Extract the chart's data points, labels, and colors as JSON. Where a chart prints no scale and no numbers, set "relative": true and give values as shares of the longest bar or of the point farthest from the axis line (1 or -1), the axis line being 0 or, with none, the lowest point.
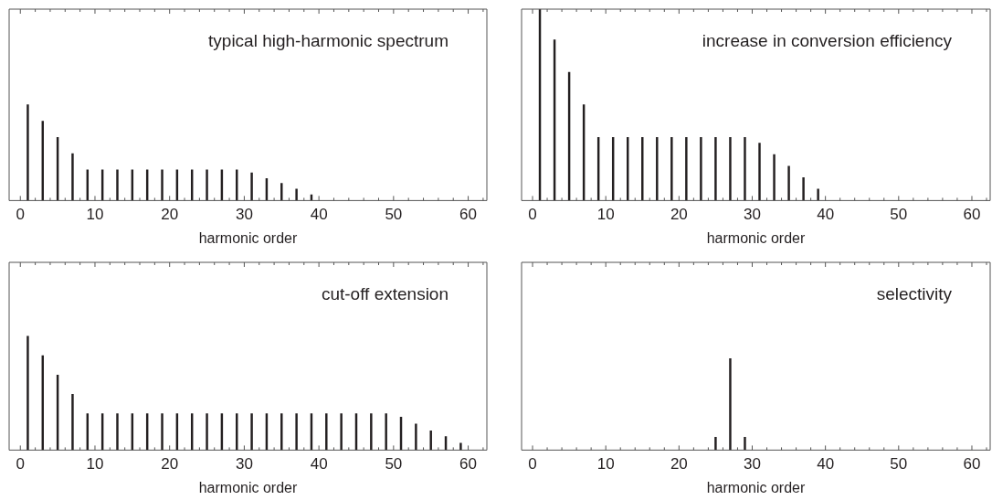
{
  "chart_data": [
    {
      "type": "bar",
      "title": "typical high-harmonic spectrum",
      "xlabel": "harmonic order",
      "relative": true,
      "xlim": [
        -1.5,
        62.5
      ],
      "xticks": [
        0,
        {
          "value": 2,
          "label": null
        },
        {
          "value": 4,
          "label": null
        },
        {
          "value": 6,
          "label": null
        },
        {
          "value": 8,
          "label": null
        },
        10,
        {
          "value": 12,
          "label": null
        },
        {
          "value": 14,
          "label": null
        },
        {
          "value": 16,
          "label": null
        },
        {
          "value": 18,
          "label": null
        },
        20,
        {
          "value": 22,
          "label": null
        },
        {
          "value": 24,
          "label": null
        },
        {
          "value": 26,
          "label": null
        },
        {
          "value": 28,
          "label": null
        },
        30,
        {
          "value": 32,
          "label": null
        },
        {
          "value": 34,
          "label": null
        },
        {
          "value": 36,
          "label": null
        },
        {
          "value": 38,
          "label": null
        },
        40,
        {
          "value": 42,
          "label": null
        },
        {
          "value": 44,
          "label": null
        },
        {
          "value": 46,
          "label": null
        },
        {
          "value": 48,
          "label": null
        },
        50,
        {
          "value": 52,
          "label": null
        },
        {
          "value": 54,
          "label": null
        },
        {
          "value": 56,
          "label": null
        },
        {
          "value": 58,
          "label": null
        },
        60,
        {
          "value": 62,
          "label": null
        }
      ],
      "series": [
        {
          "color": "#231f20",
          "x": [
            1,
            3,
            5,
            7,
            9,
            11,
            13,
            15,
            17,
            19,
            21,
            23,
            25,
            27,
            29,
            31,
            33,
            35,
            37,
            39
          ],
          "values": [
            1,
            0.83,
            0.66,
            0.49,
            0.32,
            0.32,
            0.32,
            0.32,
            0.32,
            0.32,
            0.32,
            0.32,
            0.32,
            0.32,
            0.32,
            0.29,
            0.23,
            0.18,
            0.12,
            0.06
          ]
        }
      ]
    },
    {
      "type": "bar",
      "title": "increase in conversion efficiency",
      "xlabel": "harmonic order",
      "relative": true,
      "xlim": [
        -1.5,
        62.5
      ],
      "xticks": [
        0,
        {
          "value": 2,
          "label": null
        },
        {
          "value": 4,
          "label": null
        },
        {
          "value": 6,
          "label": null
        },
        {
          "value": 8,
          "label": null
        },
        10,
        {
          "value": 12,
          "label": null
        },
        {
          "value": 14,
          "label": null
        },
        {
          "value": 16,
          "label": null
        },
        {
          "value": 18,
          "label": null
        },
        20,
        {
          "value": 22,
          "label": null
        },
        {
          "value": 24,
          "label": null
        },
        {
          "value": 26,
          "label": null
        },
        {
          "value": 28,
          "label": null
        },
        30,
        {
          "value": 32,
          "label": null
        },
        {
          "value": 34,
          "label": null
        },
        {
          "value": 36,
          "label": null
        },
        {
          "value": 38,
          "label": null
        },
        40,
        {
          "value": 42,
          "label": null
        },
        {
          "value": 44,
          "label": null
        },
        {
          "value": 46,
          "label": null
        },
        {
          "value": 48,
          "label": null
        },
        50,
        {
          "value": 52,
          "label": null
        },
        {
          "value": 54,
          "label": null
        },
        {
          "value": 56,
          "label": null
        },
        {
          "value": 58,
          "label": null
        },
        60,
        {
          "value": 62,
          "label": null
        }
      ],
      "series": [
        {
          "color": "#231f20",
          "x": [
            1,
            3,
            5,
            7,
            9,
            11,
            13,
            15,
            17,
            19,
            21,
            23,
            25,
            27,
            29,
            31,
            33,
            35,
            37,
            39
          ],
          "values": [
            1,
            0.84,
            0.67,
            0.5,
            0.33,
            0.33,
            0.33,
            0.33,
            0.33,
            0.33,
            0.33,
            0.33,
            0.33,
            0.33,
            0.33,
            0.3,
            0.24,
            0.18,
            0.12,
            0.06
          ]
        }
      ]
    },
    {
      "type": "bar",
      "title": "cut-off extension",
      "xlabel": "harmonic order",
      "relative": true,
      "xlim": [
        -1.5,
        62.5
      ],
      "xticks": [
        0,
        {
          "value": 2,
          "label": null
        },
        {
          "value": 4,
          "label": null
        },
        {
          "value": 6,
          "label": null
        },
        {
          "value": 8,
          "label": null
        },
        10,
        {
          "value": 12,
          "label": null
        },
        {
          "value": 14,
          "label": null
        },
        {
          "value": 16,
          "label": null
        },
        {
          "value": 18,
          "label": null
        },
        20,
        {
          "value": 22,
          "label": null
        },
        {
          "value": 24,
          "label": null
        },
        {
          "value": 26,
          "label": null
        },
        {
          "value": 28,
          "label": null
        },
        30,
        {
          "value": 32,
          "label": null
        },
        {
          "value": 34,
          "label": null
        },
        {
          "value": 36,
          "label": null
        },
        {
          "value": 38,
          "label": null
        },
        40,
        {
          "value": 42,
          "label": null
        },
        {
          "value": 44,
          "label": null
        },
        {
          "value": 46,
          "label": null
        },
        {
          "value": 48,
          "label": null
        },
        50,
        {
          "value": 52,
          "label": null
        },
        {
          "value": 54,
          "label": null
        },
        {
          "value": 56,
          "label": null
        },
        {
          "value": 58,
          "label": null
        },
        60,
        {
          "value": 62,
          "label": null
        }
      ],
      "series": [
        {
          "color": "#231f20",
          "x": [
            1,
            3,
            5,
            7,
            9,
            11,
            13,
            15,
            17,
            19,
            21,
            23,
            25,
            27,
            29,
            31,
            33,
            35,
            37,
            39,
            41,
            43,
            45,
            47,
            49,
            51,
            53,
            55,
            57,
            59
          ],
          "values": [
            1,
            0.83,
            0.66,
            0.49,
            0.32,
            0.32,
            0.32,
            0.32,
            0.32,
            0.32,
            0.32,
            0.32,
            0.32,
            0.32,
            0.32,
            0.32,
            0.32,
            0.32,
            0.32,
            0.32,
            0.32,
            0.32,
            0.32,
            0.32,
            0.32,
            0.29,
            0.23,
            0.17,
            0.12,
            0.06
          ]
        }
      ]
    },
    {
      "type": "bar",
      "title": "selectivity",
      "xlabel": "harmonic order",
      "relative": true,
      "xlim": [
        -1.5,
        62.5
      ],
      "xticks": [
        0,
        {
          "value": 2,
          "label": null
        },
        {
          "value": 4,
          "label": null
        },
        {
          "value": 6,
          "label": null
        },
        {
          "value": 8,
          "label": null
        },
        10,
        {
          "value": 12,
          "label": null
        },
        {
          "value": 14,
          "label": null
        },
        {
          "value": 16,
          "label": null
        },
        {
          "value": 18,
          "label": null
        },
        20,
        {
          "value": 22,
          "label": null
        },
        {
          "value": 24,
          "label": null
        },
        {
          "value": 26,
          "label": null
        },
        {
          "value": 28,
          "label": null
        },
        30,
        {
          "value": 32,
          "label": null
        },
        {
          "value": 34,
          "label": null
        },
        {
          "value": 36,
          "label": null
        },
        {
          "value": 38,
          "label": null
        },
        40,
        {
          "value": 42,
          "label": null
        },
        {
          "value": 44,
          "label": null
        },
        {
          "value": 46,
          "label": null
        },
        {
          "value": 48,
          "label": null
        },
        50,
        {
          "value": 52,
          "label": null
        },
        {
          "value": 54,
          "label": null
        },
        {
          "value": 56,
          "label": null
        },
        {
          "value": 58,
          "label": null
        },
        60,
        {
          "value": 62,
          "label": null
        }
      ],
      "series": [
        {
          "color": "#231f20",
          "x": [
            25,
            27,
            29
          ],
          "values": [
            0.14,
            1,
            0.14
          ]
        }
      ]
    }
  ]
}
